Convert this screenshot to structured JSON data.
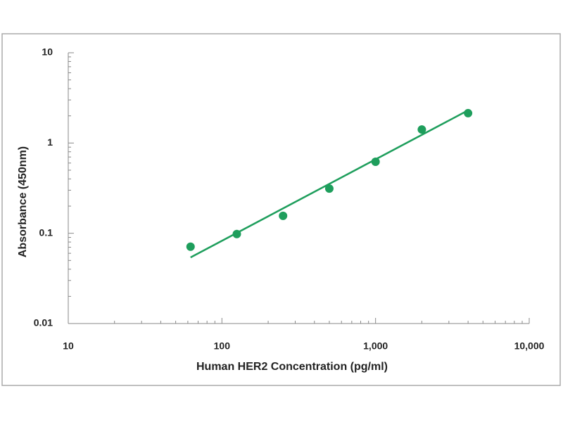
{
  "chart_data": {
    "type": "scatter",
    "log_x": true,
    "log_y": true,
    "x_label": "Human HER2 Concentration (pg/ml)",
    "y_label": "Absorbance (450nm)",
    "series": [
      {
        "color": "#1e9e5c",
        "x": [
          62.5,
          125,
          250,
          500,
          1000,
          2000,
          4000
        ],
        "values": [
          0.071,
          0.098,
          0.156,
          0.313,
          0.62,
          1.41,
          2.14
        ]
      }
    ],
    "fit": {
      "color": "#1e9e5c",
      "x": [
        62.5,
        4000
      ],
      "values": [
        0.054,
        2.3
      ]
    },
    "xlim": [
      10,
      10000
    ],
    "xticks": [
      10,
      100,
      {
        "value": 1000,
        "label": "1,000"
      },
      {
        "value": 10000,
        "label": "10,000"
      }
    ],
    "ylim": [
      0.01,
      10
    ],
    "yticks": [
      0.01,
      0.1,
      1,
      10
    ]
  }
}
